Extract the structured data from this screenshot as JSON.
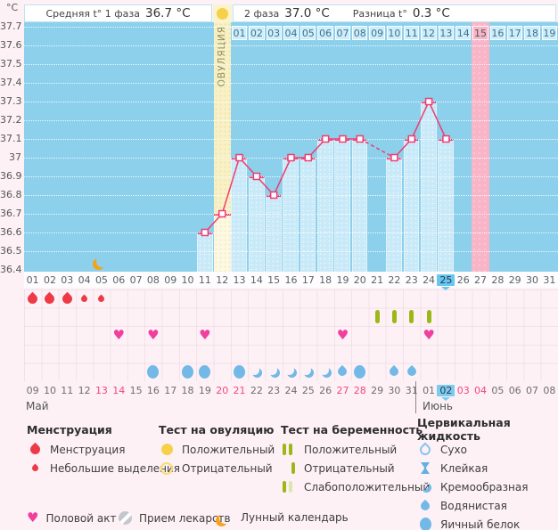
{
  "header": {
    "unit": "°C",
    "phase1_label": "Средняя t° 1 фаза",
    "phase1_value": "36.7 °C",
    "phase2_label": "2 фаза",
    "phase2_value": "37.0 °C",
    "diff_label": "Разница t°",
    "diff_value": "0.3 °C"
  },
  "icons": {
    "heart": "♥"
  },
  "colors": {
    "plot_bg": "#8dd0ec",
    "bar_fill": "#c8e9f8",
    "temp_line": "#ee3d72",
    "ovulation_column": "#f8f1c8",
    "period_column": "#f8b5c8",
    "today_highlight": "#69c6ef",
    "menstruation_red": "#ee3a47",
    "heart_pink": "#f23e9d",
    "test_green": "#9cb717",
    "fluid_blue": "#72b9e7",
    "moon_orange": "#f6a21b",
    "ovulation_test_yellow": "#f6d049"
  },
  "chart_data": {
    "type": "line",
    "title": "",
    "ylabel": "°C",
    "ylim": [
      36.4,
      37.7
    ],
    "ytick_step": 0.1,
    "yticks": [
      "37.7",
      "37.6",
      "37.5",
      "37.4",
      "37.3",
      "37.2",
      "37.1",
      "37",
      "36.9",
      "36.8",
      "36.7",
      "36.6",
      "36.5",
      "36.4"
    ],
    "grid": "dotted-white",
    "dates": [
      "01",
      "02",
      "03",
      "04",
      "05",
      "06",
      "07",
      "08",
      "09",
      "10",
      "11",
      "12",
      "13",
      "14",
      "15",
      "16",
      "17",
      "18",
      "19",
      "20",
      "21",
      "22",
      "23",
      "24",
      "25",
      "26",
      "27",
      "28",
      "29",
      "30",
      "31"
    ],
    "temps": [
      null,
      null,
      null,
      null,
      null,
      null,
      null,
      null,
      null,
      null,
      36.6,
      36.7,
      37.0,
      36.9,
      36.8,
      37.0,
      37.0,
      37.1,
      37.1,
      37.1,
      null,
      37.0,
      37.1,
      37.3,
      37.1,
      null,
      null,
      null,
      null,
      null,
      null
    ],
    "missing_gap_dashed": [
      19,
      21
    ],
    "today_index": 24,
    "ovulation_index": 11,
    "ovulation_label": "ОВУЛЯЦИЯ",
    "predicted_period_index": 26,
    "cycle_day_start_index": 12,
    "cycle_days": [
      "01",
      "02",
      "03",
      "04",
      "05",
      "06",
      "07",
      "08",
      "09",
      "10",
      "11",
      "12",
      "13",
      "14",
      "15",
      "16",
      "17",
      "18",
      "19"
    ],
    "cycle_day_highlight": "15",
    "moon_index": 4,
    "moon_value": 36.45
  },
  "tracker": {
    "dates": [
      {
        "l": "09"
      },
      {
        "l": "10"
      },
      {
        "l": "11"
      },
      {
        "l": "12"
      },
      {
        "l": "13",
        "red": true
      },
      {
        "l": "14",
        "red": true
      },
      {
        "l": "15"
      },
      {
        "l": "16"
      },
      {
        "l": "17"
      },
      {
        "l": "18"
      },
      {
        "l": "19"
      },
      {
        "l": "20",
        "red": true
      },
      {
        "l": "21",
        "red": true
      },
      {
        "l": "22"
      },
      {
        "l": "23"
      },
      {
        "l": "24"
      },
      {
        "l": "25"
      },
      {
        "l": "26"
      },
      {
        "l": "27",
        "red": true
      },
      {
        "l": "28",
        "red": true
      },
      {
        "l": "29"
      },
      {
        "l": "30"
      },
      {
        "l": "31"
      },
      {
        "l": "01"
      },
      {
        "l": "02",
        "today": true
      },
      {
        "l": "03",
        "red": true
      },
      {
        "l": "04",
        "red": true
      },
      {
        "l": "05"
      },
      {
        "l": "06"
      },
      {
        "l": "07"
      },
      {
        "l": "08"
      }
    ],
    "months": [
      {
        "label": "Май"
      },
      {
        "label": "Июнь",
        "start_index": 23
      }
    ],
    "rows": {
      "menstruation": [
        {
          "i": 0,
          "t": "heavy"
        },
        {
          "i": 1,
          "t": "heavy"
        },
        {
          "i": 2,
          "t": "heavy"
        },
        {
          "i": 3,
          "t": "light"
        },
        {
          "i": 4,
          "t": "light"
        }
      ],
      "pregnancy_test": [
        {
          "i": 20,
          "t": "negative"
        },
        {
          "i": 21,
          "t": "negative"
        },
        {
          "i": 22,
          "t": "negative"
        },
        {
          "i": 23,
          "t": "negative"
        }
      ],
      "intimacy": [
        5,
        7,
        10,
        18,
        23
      ],
      "medications": [],
      "cervical": [
        {
          "i": 7,
          "t": "eggwhite"
        },
        {
          "i": 9,
          "t": "eggwhite"
        },
        {
          "i": 10,
          "t": "eggwhite"
        },
        {
          "i": 12,
          "t": "eggwhite"
        },
        {
          "i": 13,
          "t": "creamy"
        },
        {
          "i": 14,
          "t": "creamy"
        },
        {
          "i": 15,
          "t": "creamy"
        },
        {
          "i": 16,
          "t": "creamy"
        },
        {
          "i": 17,
          "t": "creamy"
        },
        {
          "i": 18,
          "t": "watery"
        },
        {
          "i": 19,
          "t": "eggwhite"
        },
        {
          "i": 21,
          "t": "watery"
        },
        {
          "i": 22,
          "t": "watery"
        }
      ]
    }
  },
  "legend": {
    "menstruation": {
      "title": "Менструация",
      "items": [
        {
          "label": "Менструация"
        },
        {
          "label": "Небольшие выделения"
        }
      ]
    },
    "ovulation_test": {
      "title": "Тест на овуляцию",
      "items": [
        {
          "label": "Положительный"
        },
        {
          "label": "Отрицательный"
        }
      ]
    },
    "pregnancy_test": {
      "title": "Тест на беременность",
      "items": [
        {
          "label": "Положительный"
        },
        {
          "label": "Отрицательный"
        },
        {
          "label": "Слабоположительный"
        }
      ]
    },
    "cervical": {
      "title": "Цервикальная жидкость",
      "items": [
        {
          "label": "Сухо"
        },
        {
          "label": "Клейкая"
        },
        {
          "label": "Кремообразная"
        },
        {
          "label": "Водянистая"
        },
        {
          "label": "Яичный белок"
        }
      ]
    },
    "extras": [
      {
        "label": "Половой акт"
      },
      {
        "label": "Прием лекарств"
      },
      {
        "label": "Лунный календарь"
      }
    ]
  }
}
